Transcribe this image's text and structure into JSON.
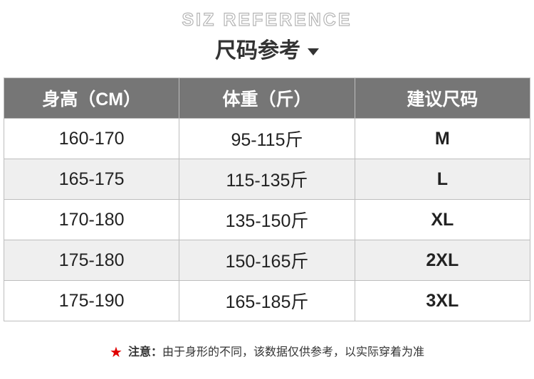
{
  "header": {
    "title_en": "SIZ REFERENCE",
    "title_cn": "尺码参考"
  },
  "table": {
    "columns": [
      "身高（CM）",
      "体重（斤）",
      "建议尺码"
    ],
    "rows": [
      [
        "160-170",
        "95-115斤",
        "M"
      ],
      [
        "165-175",
        "115-135斤",
        "L"
      ],
      [
        "170-180",
        "135-150斤",
        "XL"
      ],
      [
        "175-180",
        "150-165斤",
        "2XL"
      ],
      [
        "175-190",
        "165-185斤",
        "3XL"
      ]
    ]
  },
  "note": {
    "label": "注意：",
    "text": "由于身形的不同，该数据仅供参考，以实际穿着为准",
    "icon": "star-icon"
  },
  "colors": {
    "header_bg": "#767676",
    "alt_row": "#efefef",
    "star": "#e00000"
  }
}
